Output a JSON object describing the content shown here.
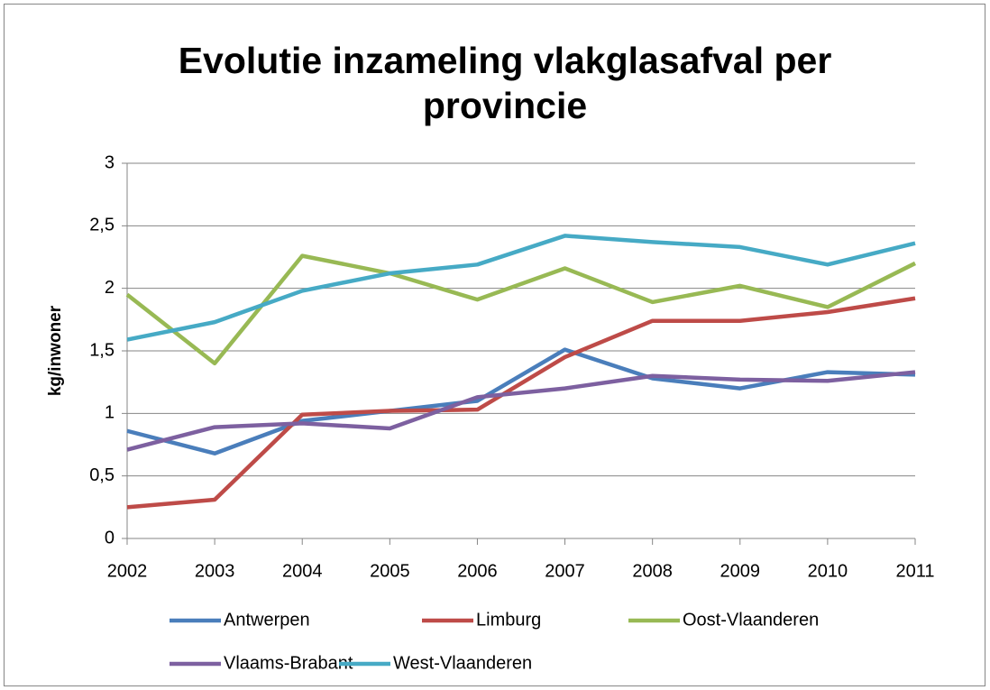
{
  "chart_data": {
    "type": "line",
    "title": "Evolutie inzameling vlakglasafval per provincie",
    "y_label": "kg/inwoner",
    "categories": [
      "2002",
      "2003",
      "2004",
      "2005",
      "2006",
      "2007",
      "2008",
      "2009",
      "2010",
      "2011"
    ],
    "series": [
      {
        "name": "Antwerpen",
        "color": "#4a7ebb",
        "values": [
          0.86,
          0.68,
          0.94,
          1.02,
          1.1,
          1.51,
          1.28,
          1.2,
          1.33,
          1.31
        ]
      },
      {
        "name": "Limburg",
        "color": "#be4b48",
        "values": [
          0.25,
          0.31,
          0.99,
          1.02,
          1.03,
          1.45,
          1.74,
          1.74,
          1.81,
          1.92
        ]
      },
      {
        "name": "Oost-Vlaanderen",
        "color": "#98b954",
        "values": [
          1.95,
          1.4,
          2.26,
          2.12,
          1.91,
          2.16,
          1.89,
          2.02,
          1.85,
          2.2
        ]
      },
      {
        "name": "Vlaams-Brabant",
        "color": "#7d60a0",
        "values": [
          0.71,
          0.89,
          0.92,
          0.88,
          1.13,
          1.2,
          1.3,
          1.27,
          1.26,
          1.33
        ]
      },
      {
        "name": "West-Vlaanderen",
        "color": "#46aac5",
        "values": [
          1.59,
          1.73,
          1.98,
          2.12,
          2.19,
          2.42,
          2.37,
          2.33,
          2.19,
          2.36
        ]
      }
    ],
    "ylim": [
      0,
      3
    ],
    "yticks": [
      0,
      {
        "value": 0.5,
        "label": "0,5"
      },
      1,
      {
        "value": 1.5,
        "label": "1,5"
      },
      2,
      {
        "value": 2.5,
        "label": "2,5"
      },
      3
    ],
    "grid": true,
    "legend": "bottom"
  }
}
